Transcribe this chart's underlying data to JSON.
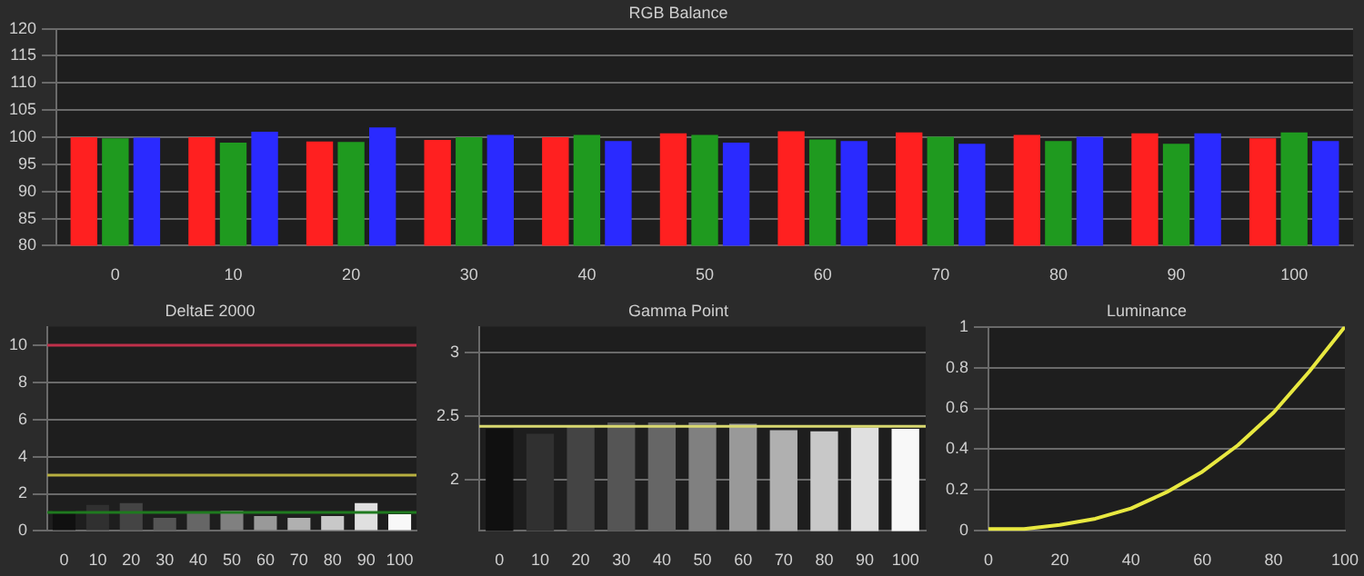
{
  "chart_data": [
    {
      "type": "bar",
      "title": "RGB Balance",
      "categories": [
        "0",
        "10",
        "20",
        "30",
        "40",
        "50",
        "60",
        "70",
        "80",
        "90",
        "100"
      ],
      "series": [
        {
          "color": "#ff2020",
          "values": [
            100,
            100,
            99.2,
            99.5,
            100,
            100.7,
            101.1,
            100.9,
            100.4,
            100.7,
            99.8
          ]
        },
        {
          "color": "#1f9a1f",
          "values": [
            99.8,
            99,
            99.1,
            100,
            100.4,
            100.4,
            99.6,
            100.1,
            99.3,
            98.8,
            100.9
          ]
        },
        {
          "color": "#2a2aff",
          "values": [
            99.9,
            101,
            101.8,
            100.4,
            99.3,
            99,
            99.3,
            98.8,
            100.1,
            100.7,
            99.3
          ]
        }
      ],
      "ylim": [
        80,
        120
      ],
      "yticks": [
        80,
        85,
        90,
        95,
        100,
        105,
        110,
        115,
        120
      ],
      "grid": "y",
      "legend": false
    },
    {
      "type": "bar",
      "title": "DeltaE 2000",
      "categories": [
        "0",
        "10",
        "20",
        "30",
        "40",
        "50",
        "60",
        "70",
        "80",
        "90",
        "100"
      ],
      "values": [
        1.1,
        1.4,
        1.5,
        0.7,
        1,
        1.1,
        0.8,
        0.7,
        0.8,
        1.5,
        0.9
      ],
      "colors": [
        "#101010",
        "#303030",
        "#444444",
        "#555555",
        "#666666",
        "#808080",
        "#999999",
        "#b0b0b0",
        "#c8c8c8",
        "#e0e0e0",
        "#f8f8f8"
      ],
      "ylim": [
        0,
        11
      ],
      "yticks": [
        0,
        2,
        4,
        6,
        8,
        10
      ],
      "grid": "y",
      "legend": false,
      "ref_lines": [
        {
          "axis": "y",
          "value": 10,
          "color": "#c0304a"
        },
        {
          "axis": "y",
          "value": 3,
          "color": "#b8b040"
        },
        {
          "axis": "y",
          "value": 1,
          "color": "#1f7a1f"
        }
      ]
    },
    {
      "type": "bar",
      "title": "Gamma Point",
      "categories": [
        "0",
        "10",
        "20",
        "30",
        "40",
        "50",
        "60",
        "70",
        "80",
        "90",
        "100"
      ],
      "values": [
        2.4,
        2.36,
        2.42,
        2.45,
        2.45,
        2.45,
        2.44,
        2.39,
        2.38,
        2.41,
        2.4
      ],
      "colors": [
        "#101010",
        "#303030",
        "#444444",
        "#555555",
        "#666666",
        "#808080",
        "#999999",
        "#b0b0b0",
        "#c8c8c8",
        "#e0e0e0",
        "#f8f8f8"
      ],
      "ylim": [
        1.6,
        3.2
      ],
      "yticks": [
        2,
        2.5,
        3
      ],
      "grid": "y",
      "legend": false,
      "ref_lines": [
        {
          "axis": "y",
          "value": 2.42,
          "color": "#d8d870"
        }
      ]
    },
    {
      "type": "line",
      "title": "Luminance",
      "x": [
        0,
        10,
        20,
        30,
        40,
        50,
        60,
        70,
        80,
        90,
        100
      ],
      "series": [
        {
          "color": "#e8e840",
          "values": [
            0.01,
            0.01,
            0.03,
            0.06,
            0.11,
            0.19,
            0.29,
            0.42,
            0.58,
            0.78,
            1
          ]
        }
      ],
      "xlim": [
        0,
        100
      ],
      "xticks": [
        0,
        20,
        40,
        60,
        80,
        100
      ],
      "ylim": [
        0,
        1
      ],
      "yticks": [
        0,
        0.2,
        0.4,
        0.6,
        0.8,
        1
      ],
      "grid": "y",
      "legend": false,
      "marker": "none"
    }
  ]
}
